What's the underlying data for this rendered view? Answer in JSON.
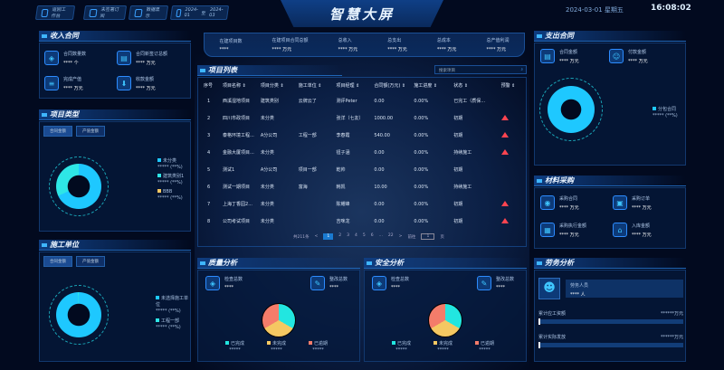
{
  "header": {
    "title": "智慧大屏",
    "buttons": [
      "返回工作台",
      "未签署订阅",
      "数据显示"
    ],
    "date_from": "2024-01",
    "date_sep": "至",
    "date_to": "2024-03",
    "date": "2024-03-01",
    "weekday": "星期五",
    "time": "16:08:02"
  },
  "summary": [
    {
      "label": "在建项目数",
      "value": "****",
      "unit": ""
    },
    {
      "label": "在建项目合同总额",
      "value": "****",
      "unit": "万元"
    },
    {
      "label": "总收入",
      "value": "****",
      "unit": "万元"
    },
    {
      "label": "总支出",
      "value": "****",
      "unit": "万元"
    },
    {
      "label": "总成本",
      "value": "****",
      "unit": "万元"
    },
    {
      "label": "总产值利润",
      "value": "****",
      "unit": "万元"
    }
  ],
  "income": {
    "title": "收入合同",
    "items": [
      {
        "label": "合同数量数",
        "value": "****",
        "unit": "个"
      },
      {
        "label": "合同新签订总额",
        "value": "****",
        "unit": "万元"
      },
      {
        "label": "完成产值",
        "value": "****",
        "unit": "万元"
      },
      {
        "label": "收款金额",
        "value": "****",
        "unit": "万元"
      }
    ]
  },
  "project_type": {
    "title": "项目类型",
    "tabs": [
      "合同金额",
      "产值金额"
    ],
    "legend": [
      {
        "name": "未分类",
        "value": "*****",
        "pct": "(**%)",
        "color": "#1ec8ff"
      },
      {
        "name": "建筑类别1",
        "value": "*****",
        "pct": "(**%)",
        "color": "#2ee6e6"
      },
      {
        "name": "BBB",
        "value": "*****",
        "pct": "(**%)",
        "color": "#f5c862"
      }
    ]
  },
  "unit": {
    "title": "施工单位",
    "tabs": [
      "合同金额",
      "产值金额"
    ],
    "legend": [
      {
        "name": "未选择施工单位",
        "value": "*****",
        "pct": "(**%)",
        "color": "#1ec8ff"
      },
      {
        "name": "工程一部",
        "value": "*****",
        "pct": "(**%)",
        "color": "#2ee6e6"
      }
    ]
  },
  "projects": {
    "title": "项目列表",
    "search_placeholder": "搜索项目",
    "columns": [
      "序号",
      "项目名称",
      "项目分类",
      "施工单位",
      "项目经理",
      "合同额(万元)",
      "施工进度",
      "状态",
      "预警"
    ],
    "rows": [
      [
        "1",
        "西溪湿地项目",
        "建筑类别",
        "云牌云了",
        "测评Peter",
        "0.00",
        "0.00%",
        "已完工（质保...",
        false
      ],
      [
        "2",
        "四川市政项目",
        "未分类",
        "",
        "张洋（七友）",
        "1000.00",
        "0.00%",
        "初期",
        true
      ],
      [
        "3",
        "泰格环境工程...",
        "A分公司",
        "工程一部",
        "李春霞",
        "540.00",
        "0.00%",
        "初期",
        true
      ],
      [
        "4",
        "金融大厦项目...",
        "未分类",
        "",
        "钮子涵",
        "0.00",
        "0.00%",
        "持续施工",
        true
      ],
      [
        "5",
        "测试1",
        "A分公司",
        "项目一部",
        "乾帅",
        "0.00",
        "0.00%",
        "初期",
        false
      ],
      [
        "6",
        "测试一期项目",
        "未分类",
        "富海",
        "韩凯",
        "10.00",
        "0.00%",
        "持续施工",
        false
      ],
      [
        "7",
        "上海丁香园2...",
        "未分类",
        "",
        "陈耀峰",
        "0.00",
        "0.00%",
        "初期",
        true
      ],
      [
        "8",
        "公司考试项目",
        "未分类",
        "",
        "吉咪龙",
        "0.00",
        "0.00%",
        "初期",
        true
      ]
    ],
    "pagination": {
      "total": "共211条",
      "prev": "<",
      "pages": [
        "1",
        "2",
        "3",
        "4",
        "5",
        "6",
        "...",
        "22"
      ],
      "next": ">",
      "goto": "前往",
      "page": "1",
      "suffix": "页"
    }
  },
  "quality": {
    "title": "质量分析",
    "stats": [
      {
        "label": "检查总数",
        "value": "****"
      },
      {
        "label": "整改总数",
        "value": "****"
      }
    ],
    "legend": [
      {
        "name": "已完成",
        "value": "*****",
        "color": "#22e6e0"
      },
      {
        "name": "未完成",
        "value": "*****",
        "color": "#f5c862"
      },
      {
        "name": "已逾期",
        "value": "*****",
        "color": "#f47c6a"
      }
    ]
  },
  "safety": {
    "title": "安全分析",
    "stats": [
      {
        "label": "检查总数",
        "value": "****"
      },
      {
        "label": "整改总数",
        "value": "****"
      }
    ],
    "legend": [
      {
        "name": "已完成",
        "value": "*****",
        "color": "#22e6e0"
      },
      {
        "name": "未完成",
        "value": "*****",
        "color": "#f5c862"
      },
      {
        "name": "已逾期",
        "value": "*****",
        "color": "#f47c6a"
      }
    ]
  },
  "expense": {
    "title": "支出合同",
    "items": [
      {
        "label": "合同金额",
        "value": "****",
        "unit": "万元"
      },
      {
        "label": "付款金额",
        "value": "****",
        "unit": "万元"
      }
    ],
    "legend": [
      {
        "name": "分包合同",
        "value": "*****",
        "pct": "(**%)",
        "color": "#1ec8ff"
      }
    ]
  },
  "material": {
    "title": "材料采购",
    "items": [
      {
        "label": "采购合同",
        "value": "****",
        "unit": "万元"
      },
      {
        "label": "采购订单",
        "value": "****",
        "unit": "万元"
      },
      {
        "label": "采购执行金额",
        "value": "****",
        "unit": "万元"
      },
      {
        "label": "入库金额",
        "value": "****",
        "unit": "万元"
      }
    ]
  },
  "labor": {
    "title": "劳务分析",
    "workers_label": "劳务人员",
    "workers_value": "****",
    "workers_unit": "人",
    "bars": [
      {
        "label": "累计应工资额",
        "value": "******",
        "unit": "万元",
        "progress": 0
      },
      {
        "label": "累计实际发放",
        "value": "******",
        "unit": "万元",
        "progress": 0
      }
    ]
  }
}
